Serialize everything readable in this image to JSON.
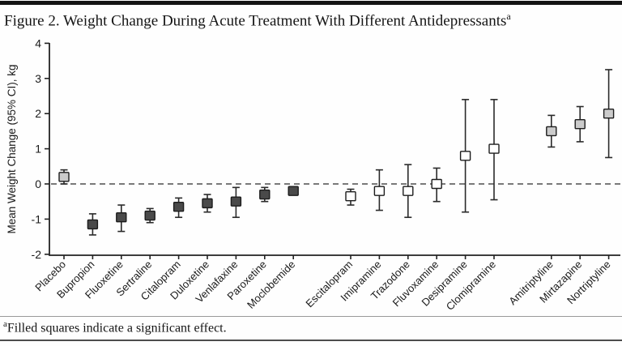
{
  "header": {
    "title": "Figure 2. Weight Change During Acute Treatment With Different Antidepressants",
    "title_superscript": "a"
  },
  "footnote": {
    "superscript": "a",
    "text": "Filled squares indicate a significant effect."
  },
  "chart_data": {
    "type": "scatter",
    "subtype": "point-estimate with 95% CI error bars (forest-style plot)",
    "title": "Weight Change During Acute Treatment With Different Antidepressants",
    "xlabel": "",
    "ylabel": "Mean Weight Change (95% CI), kg",
    "ylim": [
      -2,
      4
    ],
    "yticks": [
      4,
      3,
      2,
      1,
      0,
      -1,
      -2
    ],
    "grid": false,
    "zero_reference_line": {
      "y": 0,
      "style": "dashed"
    },
    "marker_legend": "Filled squares indicate a significant effect; open squares are non-significant",
    "colors": {
      "marker_fill_dark": "#4a4a4a",
      "marker_fill_light": "#cbcbcb",
      "marker_fill_open": "#ffffff",
      "marker_stroke": "#1c1c1c",
      "errorbar": "#2a2a2a",
      "axis": "#222222",
      "text": "#1a1a1a"
    },
    "points": [
      {
        "label": "Placebo",
        "mean": 0.2,
        "ci_low": 0.0,
        "ci_high": 0.4,
        "fill": "light",
        "significant": true,
        "group": 0
      },
      {
        "label": "Bupropion",
        "mean": -1.15,
        "ci_low": -1.45,
        "ci_high": -0.85,
        "fill": "dark",
        "significant": true,
        "group": 0
      },
      {
        "label": "Fluoxetine",
        "mean": -0.95,
        "ci_low": -1.35,
        "ci_high": -0.6,
        "fill": "dark",
        "significant": true,
        "group": 0
      },
      {
        "label": "Sertraline",
        "mean": -0.9,
        "ci_low": -1.1,
        "ci_high": -0.7,
        "fill": "dark",
        "significant": true,
        "group": 0
      },
      {
        "label": "Citalopram",
        "mean": -0.65,
        "ci_low": -0.95,
        "ci_high": -0.4,
        "fill": "dark",
        "significant": true,
        "group": 0
      },
      {
        "label": "Duloxetine",
        "mean": -0.55,
        "ci_low": -0.8,
        "ci_high": -0.3,
        "fill": "dark",
        "significant": true,
        "group": 0
      },
      {
        "label": "Venlafaxine",
        "mean": -0.5,
        "ci_low": -0.95,
        "ci_high": -0.1,
        "fill": "dark",
        "significant": true,
        "group": 0
      },
      {
        "label": "Paroxetine",
        "mean": -0.3,
        "ci_low": -0.5,
        "ci_high": -0.1,
        "fill": "dark",
        "significant": true,
        "group": 0
      },
      {
        "label": "Moclobemide",
        "mean": -0.2,
        "ci_low": -0.3,
        "ci_high": -0.1,
        "fill": "dark",
        "significant": true,
        "group": 0
      },
      {
        "label": "Escitalopram",
        "mean": -0.35,
        "ci_low": -0.6,
        "ci_high": -0.15,
        "fill": "open",
        "significant": false,
        "group": 1
      },
      {
        "label": "Imipramine",
        "mean": -0.2,
        "ci_low": -0.75,
        "ci_high": 0.4,
        "fill": "open",
        "significant": false,
        "group": 1
      },
      {
        "label": "Trazodone",
        "mean": -0.2,
        "ci_low": -0.95,
        "ci_high": 0.55,
        "fill": "open",
        "significant": false,
        "group": 1
      },
      {
        "label": "Fluvoxamine",
        "mean": 0.0,
        "ci_low": -0.5,
        "ci_high": 0.45,
        "fill": "open",
        "significant": false,
        "group": 1
      },
      {
        "label": "Desipramine",
        "mean": 0.8,
        "ci_low": -0.8,
        "ci_high": 2.4,
        "fill": "open",
        "significant": false,
        "group": 1
      },
      {
        "label": "Clomipramine",
        "mean": 1.0,
        "ci_low": -0.45,
        "ci_high": 2.4,
        "fill": "open",
        "significant": false,
        "group": 1
      },
      {
        "label": "Amitriptyline",
        "mean": 1.5,
        "ci_low": 1.05,
        "ci_high": 1.95,
        "fill": "light",
        "significant": true,
        "group": 2
      },
      {
        "label": "Mirtazapine",
        "mean": 1.7,
        "ci_low": 1.2,
        "ci_high": 2.2,
        "fill": "light",
        "significant": true,
        "group": 2
      },
      {
        "label": "Nortriptyline",
        "mean": 2.0,
        "ci_low": 0.75,
        "ci_high": 3.25,
        "fill": "light",
        "significant": true,
        "group": 2
      }
    ]
  }
}
